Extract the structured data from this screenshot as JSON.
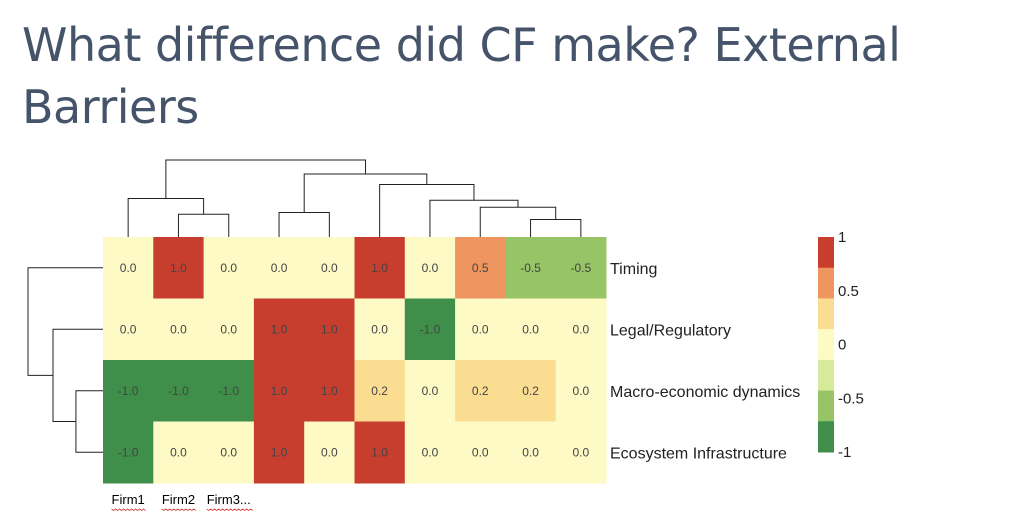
{
  "slide": {
    "title": "What difference did CF make? External Barriers"
  },
  "chart_data": {
    "type": "heatmap",
    "rows": [
      "Timing",
      "Legal/Regulatory",
      "Macro-economic dynamics",
      "Ecosystem Infrastructure"
    ],
    "column_labels": [
      "Firm1",
      "Firm2",
      "Firm3..."
    ],
    "values": [
      [
        0.0,
        1.0,
        0.0,
        0.0,
        0.0,
        1.0,
        0.0,
        0.5,
        -0.5,
        -0.5
      ],
      [
        0.0,
        0.0,
        0.0,
        1.0,
        1.0,
        0.0,
        -1.0,
        0.0,
        0.0,
        0.0
      ],
      [
        -1.0,
        -1.0,
        -1.0,
        1.0,
        1.0,
        0.2,
        0.0,
        0.2,
        0.2,
        0.0
      ],
      [
        -1.0,
        0.0,
        0.0,
        1.0,
        0.0,
        1.0,
        0.0,
        0.0,
        0.0,
        0.0
      ]
    ],
    "cell_labels": [
      [
        "0.0",
        "1.0",
        "0.0",
        "0.0",
        "0.0",
        "1.0",
        "0.0",
        "0.5",
        "-0.5",
        "-0.5"
      ],
      [
        "0.0",
        "0.0",
        "0.0",
        "1.0",
        "1.0",
        "0.0",
        "-1.0",
        "0.0",
        "0.0",
        "0.0"
      ],
      [
        "-1.0",
        "-1.0",
        "-1.0",
        "1.0",
        "1.0",
        "0.2",
        "0.0",
        "0.2",
        "0.2",
        "0.0"
      ],
      [
        "-1.0",
        "0.0",
        "0.0",
        "1.0",
        "0.0",
        "1.0",
        "0.0",
        "0.0",
        "0.0",
        "0.0"
      ]
    ],
    "color_scale": {
      "bins": [
        {
          "max": -0.75,
          "color": "#3f8f4a"
        },
        {
          "max": -0.25,
          "color": "#97c466"
        },
        {
          "max": 0.1,
          "color": "#fefac6"
        },
        {
          "max": 0.35,
          "color": "#fbdd92"
        },
        {
          "max": 0.75,
          "color": "#ee9560"
        },
        {
          "max": 1.0,
          "color": "#c73e2f"
        }
      ]
    },
    "legend": {
      "position": "right",
      "colors": [
        "#c73e2f",
        "#ee9560",
        "#fbdd92",
        "#fefac6",
        "#d6ea9b",
        "#97c466",
        "#3f8f4a"
      ],
      "tick_labels": [
        "1",
        "0.5",
        "0",
        "-0.5",
        "-1"
      ],
      "tick_values": [
        1,
        0.5,
        0,
        -0.5,
        -1
      ]
    },
    "row_dendrogram": {
      "leaf_order": [
        0,
        1,
        2,
        3
      ],
      "merges": [
        [
          2,
          3,
          1.3
        ],
        [
          1,
          4,
          2.4
        ],
        [
          0,
          5,
          3.6
        ]
      ]
    },
    "column_dendrogram": {
      "leaf_order": [
        0,
        1,
        2,
        3,
        4,
        5,
        6,
        7,
        8,
        9
      ],
      "merges": [
        [
          8,
          9,
          1.0
        ],
        [
          1,
          2,
          1.3
        ],
        [
          3,
          4,
          1.4
        ],
        [
          7,
          10,
          1.7
        ],
        [
          6,
          13,
          2.1
        ],
        [
          0,
          11,
          2.2
        ],
        [
          5,
          14,
          3.0
        ],
        [
          12,
          16,
          3.6
        ],
        [
          15,
          17,
          4.4
        ]
      ]
    }
  }
}
